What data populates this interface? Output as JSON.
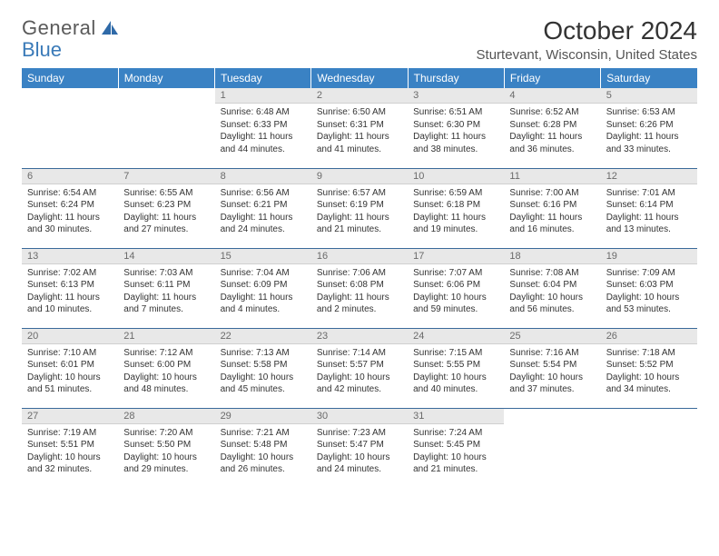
{
  "logo": {
    "text1": "General",
    "text2": "Blue"
  },
  "title": "October 2024",
  "location": "Sturtevant, Wisconsin, United States",
  "colors": {
    "header_bg": "#3a82c4",
    "header_text": "#ffffff",
    "daynum_bg": "#e8e8e8",
    "daynum_text": "#6a6a6a",
    "border": "#3a6a9a",
    "body_text": "#333333",
    "logo_gray": "#5a5a5a",
    "logo_blue": "#3a7ab8"
  },
  "weekdays": [
    "Sunday",
    "Monday",
    "Tuesday",
    "Wednesday",
    "Thursday",
    "Friday",
    "Saturday"
  ],
  "weeks": [
    [
      null,
      null,
      {
        "n": "1",
        "sr": "Sunrise: 6:48 AM",
        "ss": "Sunset: 6:33 PM",
        "d1": "Daylight: 11 hours",
        "d2": "and 44 minutes."
      },
      {
        "n": "2",
        "sr": "Sunrise: 6:50 AM",
        "ss": "Sunset: 6:31 PM",
        "d1": "Daylight: 11 hours",
        "d2": "and 41 minutes."
      },
      {
        "n": "3",
        "sr": "Sunrise: 6:51 AM",
        "ss": "Sunset: 6:30 PM",
        "d1": "Daylight: 11 hours",
        "d2": "and 38 minutes."
      },
      {
        "n": "4",
        "sr": "Sunrise: 6:52 AM",
        "ss": "Sunset: 6:28 PM",
        "d1": "Daylight: 11 hours",
        "d2": "and 36 minutes."
      },
      {
        "n": "5",
        "sr": "Sunrise: 6:53 AM",
        "ss": "Sunset: 6:26 PM",
        "d1": "Daylight: 11 hours",
        "d2": "and 33 minutes."
      }
    ],
    [
      {
        "n": "6",
        "sr": "Sunrise: 6:54 AM",
        "ss": "Sunset: 6:24 PM",
        "d1": "Daylight: 11 hours",
        "d2": "and 30 minutes."
      },
      {
        "n": "7",
        "sr": "Sunrise: 6:55 AM",
        "ss": "Sunset: 6:23 PM",
        "d1": "Daylight: 11 hours",
        "d2": "and 27 minutes."
      },
      {
        "n": "8",
        "sr": "Sunrise: 6:56 AM",
        "ss": "Sunset: 6:21 PM",
        "d1": "Daylight: 11 hours",
        "d2": "and 24 minutes."
      },
      {
        "n": "9",
        "sr": "Sunrise: 6:57 AM",
        "ss": "Sunset: 6:19 PM",
        "d1": "Daylight: 11 hours",
        "d2": "and 21 minutes."
      },
      {
        "n": "10",
        "sr": "Sunrise: 6:59 AM",
        "ss": "Sunset: 6:18 PM",
        "d1": "Daylight: 11 hours",
        "d2": "and 19 minutes."
      },
      {
        "n": "11",
        "sr": "Sunrise: 7:00 AM",
        "ss": "Sunset: 6:16 PM",
        "d1": "Daylight: 11 hours",
        "d2": "and 16 minutes."
      },
      {
        "n": "12",
        "sr": "Sunrise: 7:01 AM",
        "ss": "Sunset: 6:14 PM",
        "d1": "Daylight: 11 hours",
        "d2": "and 13 minutes."
      }
    ],
    [
      {
        "n": "13",
        "sr": "Sunrise: 7:02 AM",
        "ss": "Sunset: 6:13 PM",
        "d1": "Daylight: 11 hours",
        "d2": "and 10 minutes."
      },
      {
        "n": "14",
        "sr": "Sunrise: 7:03 AM",
        "ss": "Sunset: 6:11 PM",
        "d1": "Daylight: 11 hours",
        "d2": "and 7 minutes."
      },
      {
        "n": "15",
        "sr": "Sunrise: 7:04 AM",
        "ss": "Sunset: 6:09 PM",
        "d1": "Daylight: 11 hours",
        "d2": "and 4 minutes."
      },
      {
        "n": "16",
        "sr": "Sunrise: 7:06 AM",
        "ss": "Sunset: 6:08 PM",
        "d1": "Daylight: 11 hours",
        "d2": "and 2 minutes."
      },
      {
        "n": "17",
        "sr": "Sunrise: 7:07 AM",
        "ss": "Sunset: 6:06 PM",
        "d1": "Daylight: 10 hours",
        "d2": "and 59 minutes."
      },
      {
        "n": "18",
        "sr": "Sunrise: 7:08 AM",
        "ss": "Sunset: 6:04 PM",
        "d1": "Daylight: 10 hours",
        "d2": "and 56 minutes."
      },
      {
        "n": "19",
        "sr": "Sunrise: 7:09 AM",
        "ss": "Sunset: 6:03 PM",
        "d1": "Daylight: 10 hours",
        "d2": "and 53 minutes."
      }
    ],
    [
      {
        "n": "20",
        "sr": "Sunrise: 7:10 AM",
        "ss": "Sunset: 6:01 PM",
        "d1": "Daylight: 10 hours",
        "d2": "and 51 minutes."
      },
      {
        "n": "21",
        "sr": "Sunrise: 7:12 AM",
        "ss": "Sunset: 6:00 PM",
        "d1": "Daylight: 10 hours",
        "d2": "and 48 minutes."
      },
      {
        "n": "22",
        "sr": "Sunrise: 7:13 AM",
        "ss": "Sunset: 5:58 PM",
        "d1": "Daylight: 10 hours",
        "d2": "and 45 minutes."
      },
      {
        "n": "23",
        "sr": "Sunrise: 7:14 AM",
        "ss": "Sunset: 5:57 PM",
        "d1": "Daylight: 10 hours",
        "d2": "and 42 minutes."
      },
      {
        "n": "24",
        "sr": "Sunrise: 7:15 AM",
        "ss": "Sunset: 5:55 PM",
        "d1": "Daylight: 10 hours",
        "d2": "and 40 minutes."
      },
      {
        "n": "25",
        "sr": "Sunrise: 7:16 AM",
        "ss": "Sunset: 5:54 PM",
        "d1": "Daylight: 10 hours",
        "d2": "and 37 minutes."
      },
      {
        "n": "26",
        "sr": "Sunrise: 7:18 AM",
        "ss": "Sunset: 5:52 PM",
        "d1": "Daylight: 10 hours",
        "d2": "and 34 minutes."
      }
    ],
    [
      {
        "n": "27",
        "sr": "Sunrise: 7:19 AM",
        "ss": "Sunset: 5:51 PM",
        "d1": "Daylight: 10 hours",
        "d2": "and 32 minutes."
      },
      {
        "n": "28",
        "sr": "Sunrise: 7:20 AM",
        "ss": "Sunset: 5:50 PM",
        "d1": "Daylight: 10 hours",
        "d2": "and 29 minutes."
      },
      {
        "n": "29",
        "sr": "Sunrise: 7:21 AM",
        "ss": "Sunset: 5:48 PM",
        "d1": "Daylight: 10 hours",
        "d2": "and 26 minutes."
      },
      {
        "n": "30",
        "sr": "Sunrise: 7:23 AM",
        "ss": "Sunset: 5:47 PM",
        "d1": "Daylight: 10 hours",
        "d2": "and 24 minutes."
      },
      {
        "n": "31",
        "sr": "Sunrise: 7:24 AM",
        "ss": "Sunset: 5:45 PM",
        "d1": "Daylight: 10 hours",
        "d2": "and 21 minutes."
      },
      null,
      null
    ]
  ]
}
